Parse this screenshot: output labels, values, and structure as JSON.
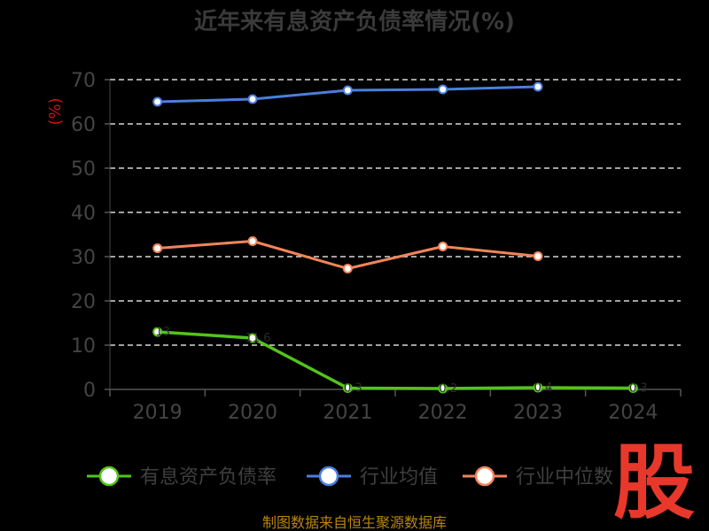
{
  "chart_data": {
    "type": "line",
    "title": "近年来有息资产负债率情况(%)",
    "ylabel": "(%)",
    "xlabel": "",
    "categories": [
      "2019",
      "2020",
      "2021",
      "2022",
      "2023",
      "2024"
    ],
    "ylim": [
      0,
      70
    ],
    "yticks": [
      0,
      10,
      20,
      30,
      40,
      50,
      60,
      70
    ],
    "grid": true,
    "legend_position": "bottom",
    "series": [
      {
        "name": "有息资产负债率",
        "color": "#52c41a",
        "values": [
          13.0,
          11.6,
          0.3,
          0.2,
          0.4,
          0.3
        ]
      },
      {
        "name": "行业均值",
        "color": "#4a7fdc",
        "values": [
          65.0,
          65.6,
          67.6,
          67.8,
          68.4,
          null
        ]
      },
      {
        "name": "行业中位数",
        "color": "#f0855a",
        "values": [
          31.9,
          33.5,
          27.3,
          32.3,
          30.1,
          null
        ]
      }
    ]
  },
  "source_text": "制图数据来自恒生聚源数据库",
  "watermark_text": "股"
}
